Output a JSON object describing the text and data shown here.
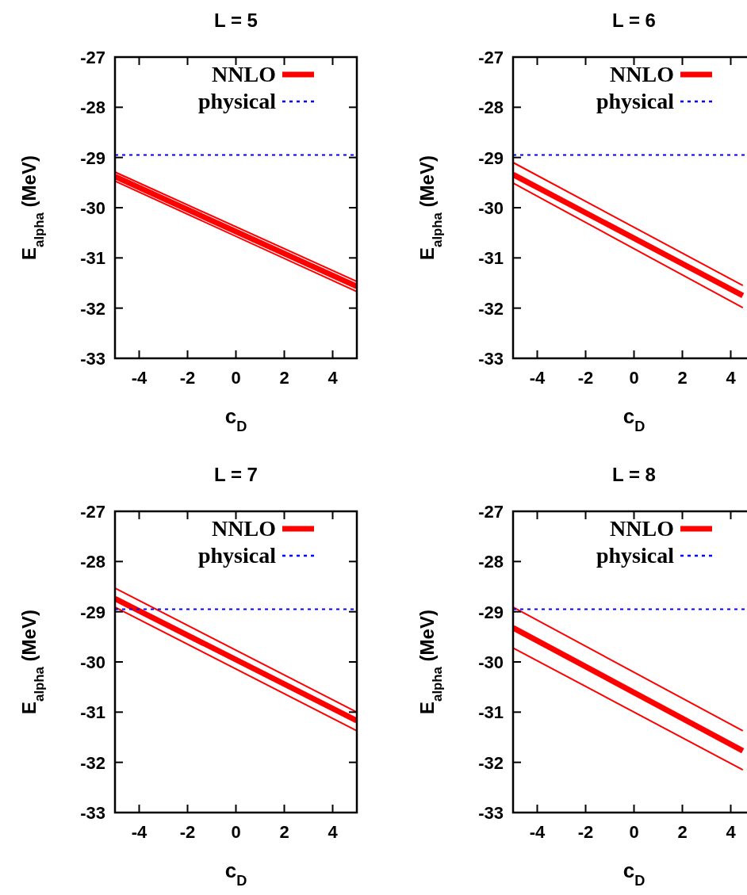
{
  "chart_data": [
    {
      "type": "line",
      "title": "L = 5",
      "xlabel": "c$_{D}$",
      "ylabel": "E$_{alpha}$ (MeV)",
      "xlim": [
        -5,
        5
      ],
      "xticks": [
        -4,
        -2,
        0,
        2,
        4
      ],
      "ylim": [
        -33,
        -27
      ],
      "yticks": [
        -33,
        -32,
        -31,
        -30,
        -29,
        -28,
        -27
      ],
      "legend": "top right",
      "series": [
        {
          "name": "NNLO",
          "color": "#ff0000",
          "x": [
            -5,
            5
          ],
          "values": [
            -29.38,
            -31.57
          ]
        },
        {
          "color": "#ff0000",
          "x": [
            -5,
            5
          ],
          "values": [
            -29.47,
            -31.67
          ]
        },
        {
          "color": "#ff0000",
          "x": [
            -5,
            5
          ],
          "values": [
            -29.29,
            -31.47
          ]
        },
        {
          "name": "physical",
          "color": "#0000ff",
          "line_style": "dotted",
          "x": [
            -5,
            5
          ],
          "values": [
            -28.95,
            -28.95
          ]
        }
      ]
    },
    {
      "type": "line",
      "title": "L = 6",
      "xlabel": "c$_{D}$",
      "ylabel": "E$_{alpha}$ (MeV)",
      "xlim": [
        -5,
        5
      ],
      "xticks": [
        -4,
        -2,
        0,
        2,
        4
      ],
      "ylim": [
        -33,
        -27
      ],
      "yticks": [
        -33,
        -32,
        -31,
        -30,
        -29,
        -28,
        -27
      ],
      "legend": "top right",
      "series": [
        {
          "name": "NNLO",
          "color": "#ff0000",
          "x": [
            -5,
            4.5
          ],
          "values": [
            -29.34,
            -31.75
          ]
        },
        {
          "color": "#ff0000",
          "x": [
            -5,
            4.5
          ],
          "values": [
            -29.51,
            -31.99
          ]
        },
        {
          "color": "#ff0000",
          "x": [
            -5,
            4.5
          ],
          "values": [
            -29.1,
            -31.55
          ]
        },
        {
          "name": "physical",
          "color": "#0000ff",
          "line_style": "dotted",
          "x": [
            -5,
            5
          ],
          "values": [
            -28.95,
            -28.95
          ]
        }
      ]
    },
    {
      "type": "line",
      "title": "L = 7",
      "xlabel": "c$_{D}$",
      "ylabel": "E$_{alpha}$ (MeV)",
      "xlim": [
        -5,
        5
      ],
      "xticks": [
        -4,
        -2,
        0,
        2,
        4
      ],
      "ylim": [
        -33,
        -27
      ],
      "yticks": [
        -33,
        -32,
        -31,
        -30,
        -29,
        -28,
        -27
      ],
      "legend": "top right",
      "series": [
        {
          "name": "NNLO",
          "color": "#ff0000",
          "x": [
            -5,
            5
          ],
          "values": [
            -28.74,
            -31.17
          ]
        },
        {
          "color": "#ff0000",
          "x": [
            -5,
            5
          ],
          "values": [
            -28.91,
            -31.37
          ]
        },
        {
          "color": "#ff0000",
          "x": [
            -5,
            5
          ],
          "values": [
            -28.53,
            -31.0
          ]
        },
        {
          "name": "physical",
          "color": "#0000ff",
          "line_style": "dotted",
          "x": [
            -5,
            5
          ],
          "values": [
            -28.95,
            -28.95
          ]
        }
      ]
    },
    {
      "type": "line",
      "title": "L = 8",
      "xlabel": "c$_{D}$",
      "ylabel": "E$_{alpha}$ (MeV)",
      "xlim": [
        -5,
        5
      ],
      "xticks": [
        -4,
        -2,
        0,
        2,
        4
      ],
      "ylim": [
        -33,
        -27
      ],
      "yticks": [
        -33,
        -32,
        -31,
        -30,
        -29,
        -28,
        -27
      ],
      "legend": "top right",
      "series": [
        {
          "name": "NNLO",
          "color": "#ff0000",
          "x": [
            -5,
            4.5
          ],
          "values": [
            -29.32,
            -31.77
          ]
        },
        {
          "color": "#ff0000",
          "x": [
            -5,
            4.5
          ],
          "values": [
            -29.72,
            -32.15
          ]
        },
        {
          "color": "#ff0000",
          "x": [
            -5,
            4.5
          ],
          "values": [
            -28.91,
            -31.37
          ]
        },
        {
          "name": "physical",
          "color": "#0000ff",
          "line_style": "dotted",
          "x": [
            -5,
            5
          ],
          "values": [
            -28.95,
            -28.95
          ]
        }
      ]
    }
  ]
}
